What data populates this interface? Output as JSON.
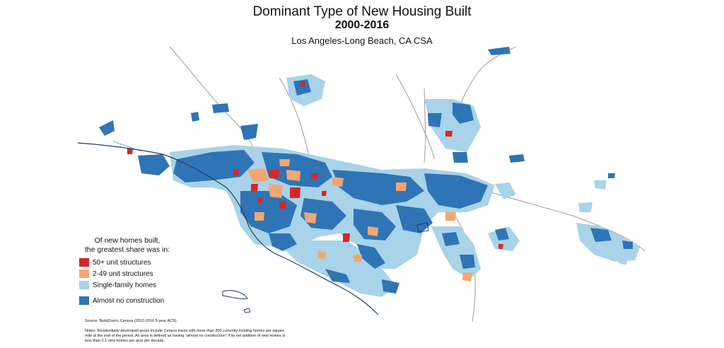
{
  "title": "Dominant Type of New Housing Built",
  "subtitle": "2000-2016",
  "region": "Los Angeles-Long Beach, CA CSA",
  "legend": {
    "heading_line1": "Of new homes built,",
    "heading_line2": "the greatest share was in:",
    "items": [
      {
        "label": "50+ unit structures",
        "color": "#d62728"
      },
      {
        "label": "2-49 unit structures",
        "color": "#f4a672"
      },
      {
        "label": "Single-family homes",
        "color": "#a8d3e8"
      },
      {
        "label": "Almost no construction",
        "color": "#2f74b5"
      }
    ]
  },
  "source": "Source: BuildZoom; Census (2012-2016 5-year ACS).",
  "notes": "Notes: Residentially-developed areas include Census tracts with more than 200 currently existing homes per square mile at the end of the period. An area is defined as having \"almost no construction\" if its net addition of new homes is less than 0.1 new homes per acre per decade.",
  "colors": {
    "roads": "#9a9a9a",
    "coastline": "#1f3e63"
  }
}
